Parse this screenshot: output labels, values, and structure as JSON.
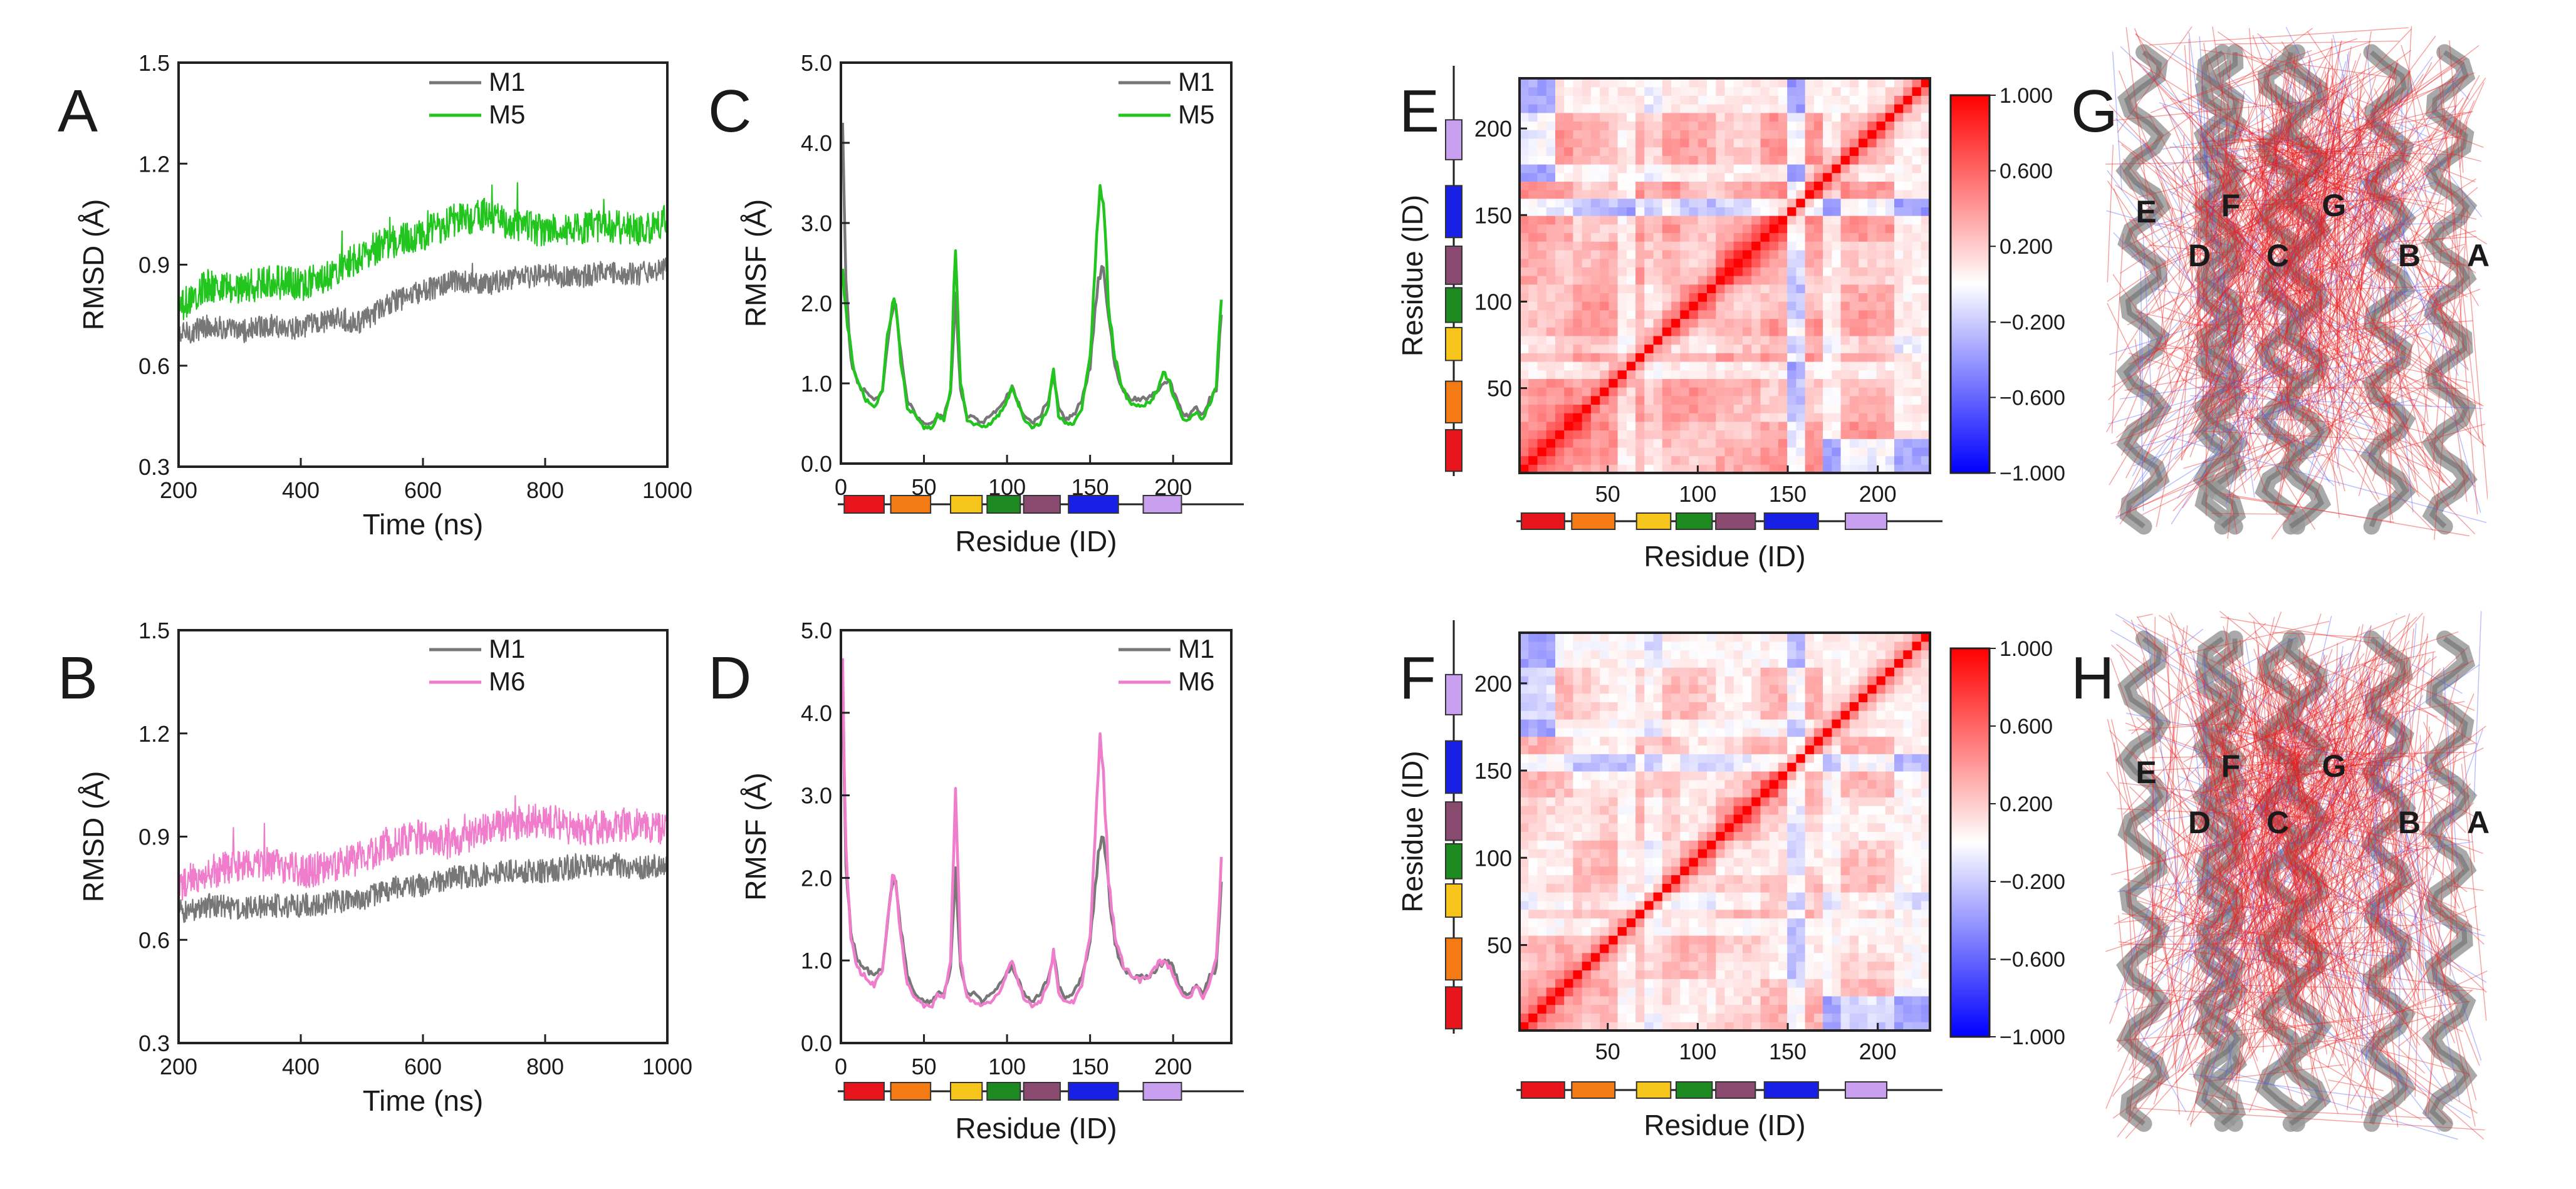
{
  "chart_data": [
    {
      "id": "A",
      "type": "line",
      "panel_label": "A",
      "xlabel": "Time (ns)",
      "ylabel": "RMSD (Å)",
      "xlim": [
        200,
        1000
      ],
      "ylim": [
        0.3,
        1.5
      ],
      "xticks": [
        200,
        400,
        600,
        800,
        1000
      ],
      "yticks": [
        0.3,
        0.6,
        0.9,
        1.2,
        1.5
      ],
      "series": [
        {
          "name": "M1",
          "color": "#777777",
          "x": [
            200,
            250,
            300,
            350,
            400,
            450,
            500,
            550,
            600,
            650,
            700,
            750,
            800,
            850,
            900,
            950,
            1000
          ],
          "y": [
            0.69,
            0.72,
            0.7,
            0.72,
            0.71,
            0.74,
            0.73,
            0.79,
            0.82,
            0.85,
            0.84,
            0.86,
            0.87,
            0.86,
            0.88,
            0.87,
            0.89
          ]
        },
        {
          "name": "M5",
          "color": "#22c51e",
          "x": [
            200,
            250,
            300,
            350,
            400,
            450,
            500,
            550,
            600,
            650,
            700,
            750,
            800,
            850,
            900,
            950,
            1000
          ],
          "y": [
            0.77,
            0.84,
            0.83,
            0.85,
            0.84,
            0.87,
            0.93,
            0.97,
            0.99,
            1.03,
            1.05,
            1.02,
            1.0,
            1.01,
            1.02,
            1.0,
            1.03
          ]
        }
      ]
    },
    {
      "id": "B",
      "type": "line",
      "panel_label": "B",
      "xlabel": "Time (ns)",
      "ylabel": "RMSD (Å)",
      "xlim": [
        200,
        1000
      ],
      "ylim": [
        0.3,
        1.5
      ],
      "xticks": [
        200,
        400,
        600,
        800,
        1000
      ],
      "yticks": [
        0.3,
        0.6,
        0.9,
        1.2,
        1.5
      ],
      "series": [
        {
          "name": "M1",
          "color": "#777777",
          "x": [
            200,
            250,
            300,
            350,
            400,
            450,
            500,
            550,
            600,
            650,
            700,
            750,
            800,
            850,
            900,
            950,
            1000
          ],
          "y": [
            0.68,
            0.7,
            0.69,
            0.7,
            0.7,
            0.71,
            0.72,
            0.75,
            0.76,
            0.78,
            0.79,
            0.8,
            0.8,
            0.81,
            0.82,
            0.81,
            0.82
          ]
        },
        {
          "name": "M6",
          "color": "#f07ccc",
          "x": [
            200,
            250,
            300,
            350,
            400,
            450,
            500,
            550,
            600,
            650,
            700,
            750,
            800,
            850,
            900,
            950,
            1000
          ],
          "y": [
            0.76,
            0.8,
            0.81,
            0.82,
            0.8,
            0.81,
            0.84,
            0.88,
            0.9,
            0.88,
            0.92,
            0.94,
            0.95,
            0.92,
            0.93,
            0.94,
            0.92
          ]
        }
      ]
    },
    {
      "id": "C",
      "type": "line",
      "panel_label": "C",
      "xlabel": "Residue (ID)",
      "ylabel": "RMSF (Å)",
      "xlim": [
        0,
        235
      ],
      "ylim": [
        0.0,
        5.0
      ],
      "xticks": [
        0,
        50,
        100,
        150,
        200
      ],
      "yticks": [
        0.0,
        1.0,
        2.0,
        3.0,
        4.0,
        5.0
      ],
      "series": [
        {
          "name": "M1",
          "color": "#777777",
          "x": [
            1,
            3,
            6,
            10,
            15,
            20,
            25,
            28,
            31,
            33,
            36,
            40,
            45,
            50,
            55,
            58,
            62,
            66,
            69,
            72,
            76,
            80,
            85,
            90,
            95,
            100,
            103,
            106,
            110,
            115,
            120,
            125,
            128,
            131,
            135,
            140,
            145,
            150,
            153,
            156,
            158,
            161,
            165,
            170,
            175,
            180,
            185,
            190,
            195,
            198,
            202,
            206,
            210,
            214,
            218,
            222,
            226,
            229
          ],
          "y": [
            4.2,
            2.2,
            1.3,
            1.0,
            0.9,
            0.8,
            0.9,
            1.5,
            1.9,
            2.0,
            1.4,
            0.8,
            0.6,
            0.5,
            0.5,
            0.6,
            0.6,
            0.9,
            2.1,
            0.9,
            0.6,
            0.6,
            0.5,
            0.6,
            0.7,
            0.85,
            0.95,
            0.8,
            0.6,
            0.5,
            0.6,
            0.8,
            1.1,
            0.7,
            0.55,
            0.6,
            0.8,
            1.2,
            1.9,
            2.4,
            2.5,
            1.9,
            1.2,
            0.9,
            0.8,
            0.8,
            0.8,
            0.9,
            1.0,
            1.0,
            0.8,
            0.6,
            0.6,
            0.7,
            0.6,
            0.8,
            0.9,
            1.9
          ]
        },
        {
          "name": "M5",
          "color": "#22c51e",
          "x": [
            1,
            3,
            6,
            10,
            15,
            20,
            25,
            28,
            31,
            33,
            36,
            40,
            45,
            50,
            55,
            58,
            62,
            66,
            69,
            72,
            76,
            80,
            85,
            90,
            95,
            100,
            103,
            106,
            110,
            115,
            120,
            125,
            128,
            131,
            135,
            140,
            145,
            150,
            153,
            156,
            158,
            161,
            165,
            170,
            175,
            180,
            185,
            190,
            195,
            198,
            202,
            206,
            210,
            214,
            218,
            222,
            226,
            229
          ],
          "y": [
            2.4,
            1.9,
            1.4,
            1.0,
            0.8,
            0.7,
            0.9,
            1.6,
            2.0,
            2.0,
            1.3,
            0.7,
            0.6,
            0.45,
            0.45,
            0.6,
            0.55,
            0.9,
            2.75,
            1.0,
            0.55,
            0.5,
            0.45,
            0.5,
            0.6,
            0.8,
            0.95,
            0.8,
            0.55,
            0.45,
            0.5,
            0.7,
            1.2,
            0.6,
            0.5,
            0.5,
            0.7,
            1.3,
            2.4,
            3.6,
            3.3,
            2.0,
            1.3,
            0.9,
            0.75,
            0.7,
            0.75,
            0.9,
            1.15,
            1.0,
            0.75,
            0.55,
            0.55,
            0.65,
            0.55,
            0.75,
            0.95,
            2.1
          ]
        }
      ],
      "sse_bar": [
        "#e8141b",
        "#f47a14",
        "#f5c51c",
        "#1d8a21",
        "#8b4a6f",
        "#1820e6",
        "#c8a0ef"
      ]
    },
    {
      "id": "D",
      "type": "line",
      "panel_label": "D",
      "xlabel": "Residue (ID)",
      "ylabel": "RMSF (Å)",
      "xlim": [
        0,
        235
      ],
      "ylim": [
        0.0,
        5.0
      ],
      "xticks": [
        0,
        50,
        100,
        150,
        200
      ],
      "yticks": [
        0.0,
        1.0,
        2.0,
        3.0,
        4.0,
        5.0
      ],
      "series": [
        {
          "name": "M1",
          "color": "#777777",
          "x": [
            1,
            3,
            6,
            10,
            15,
            20,
            25,
            28,
            31,
            33,
            36,
            40,
            45,
            50,
            55,
            58,
            62,
            66,
            69,
            72,
            76,
            80,
            85,
            90,
            95,
            100,
            103,
            106,
            110,
            115,
            120,
            125,
            128,
            131,
            135,
            140,
            145,
            150,
            153,
            156,
            158,
            161,
            165,
            170,
            175,
            180,
            185,
            190,
            195,
            198,
            202,
            206,
            210,
            214,
            218,
            222,
            226,
            229
          ],
          "y": [
            4.2,
            2.2,
            1.3,
            1.0,
            0.9,
            0.8,
            0.9,
            1.5,
            1.9,
            2.0,
            1.4,
            0.8,
            0.6,
            0.5,
            0.5,
            0.6,
            0.6,
            0.9,
            2.1,
            0.9,
            0.6,
            0.6,
            0.5,
            0.6,
            0.7,
            0.85,
            0.95,
            0.8,
            0.6,
            0.5,
            0.6,
            0.8,
            1.1,
            0.7,
            0.55,
            0.6,
            0.8,
            1.2,
            1.9,
            2.4,
            2.5,
            1.9,
            1.2,
            0.9,
            0.8,
            0.8,
            0.8,
            0.9,
            1.0,
            1.0,
            0.8,
            0.6,
            0.6,
            0.7,
            0.6,
            0.8,
            0.9,
            1.9
          ]
        },
        {
          "name": "M6",
          "color": "#f07ccc",
          "x": [
            1,
            3,
            6,
            10,
            15,
            20,
            25,
            28,
            31,
            33,
            36,
            40,
            45,
            50,
            55,
            58,
            62,
            66,
            69,
            72,
            76,
            80,
            85,
            90,
            95,
            100,
            103,
            106,
            110,
            115,
            120,
            125,
            128,
            131,
            135,
            140,
            145,
            150,
            153,
            156,
            158,
            161,
            165,
            170,
            175,
            180,
            185,
            190,
            195,
            198,
            202,
            206,
            210,
            214,
            218,
            222,
            226,
            229
          ],
          "y": [
            4.6,
            2.3,
            1.3,
            0.9,
            0.8,
            0.7,
            0.9,
            1.5,
            2.0,
            2.0,
            1.3,
            0.7,
            0.55,
            0.45,
            0.45,
            0.6,
            0.55,
            1.0,
            3.2,
            1.0,
            0.55,
            0.5,
            0.45,
            0.5,
            0.6,
            0.85,
            1.0,
            0.8,
            0.55,
            0.45,
            0.5,
            0.75,
            1.1,
            0.6,
            0.5,
            0.5,
            0.7,
            1.3,
            2.5,
            3.8,
            3.3,
            2.0,
            1.3,
            0.95,
            0.8,
            0.75,
            0.8,
            0.95,
            1.0,
            0.9,
            0.7,
            0.55,
            0.55,
            0.7,
            0.55,
            0.75,
            1.0,
            2.2
          ]
        }
      ],
      "sse_bar": [
        "#e8141b",
        "#f47a14",
        "#f5c51c",
        "#1d8a21",
        "#8b4a6f",
        "#1820e6",
        "#c8a0ef"
      ]
    },
    {
      "id": "E",
      "type": "heatmap",
      "panel_label": "E",
      "xlabel": "Residue (ID)",
      "ylabel": "Residue (ID)",
      "xlim": [
        1,
        229
      ],
      "ylim": [
        1,
        229
      ],
      "xticks": [
        50,
        100,
        150,
        200
      ],
      "yticks": [
        50,
        100,
        150,
        200
      ],
      "colorbar": {
        "ticks": [
          "1.000",
          "0.600",
          "0.200",
          "−0.200",
          "−0.600",
          "−1.000"
        ],
        "range": [
          -1.0,
          1.0
        ]
      },
      "sse_bar": [
        "#e8141b",
        "#f47a14",
        "#f5c51c",
        "#1d8a21",
        "#8b4a6f",
        "#1820e6",
        "#c8a0ef"
      ]
    },
    {
      "id": "F",
      "type": "heatmap",
      "panel_label": "F",
      "xlabel": "Residue (ID)",
      "ylabel": "Residue (ID)",
      "xlim": [
        1,
        229
      ],
      "ylim": [
        1,
        229
      ],
      "xticks": [
        50,
        100,
        150,
        200
      ],
      "yticks": [
        50,
        100,
        150,
        200
      ],
      "colorbar": {
        "ticks": [
          "1.000",
          "0.600",
          "0.200",
          "−0.200",
          "−0.600",
          "−1.000"
        ],
        "range": [
          -1.0,
          1.0
        ]
      },
      "sse_bar": [
        "#e8141b",
        "#f47a14",
        "#f5c51c",
        "#1d8a21",
        "#8b4a6f",
        "#1820e6",
        "#c8a0ef"
      ]
    },
    {
      "id": "G",
      "type": "other",
      "panel_label": "G",
      "helix_labels": [
        "E",
        "F",
        "G",
        "D",
        "C",
        "B",
        "A"
      ]
    },
    {
      "id": "H",
      "type": "other",
      "panel_label": "H",
      "helix_labels": [
        "E",
        "F",
        "G",
        "D",
        "C",
        "B",
        "A"
      ]
    }
  ]
}
